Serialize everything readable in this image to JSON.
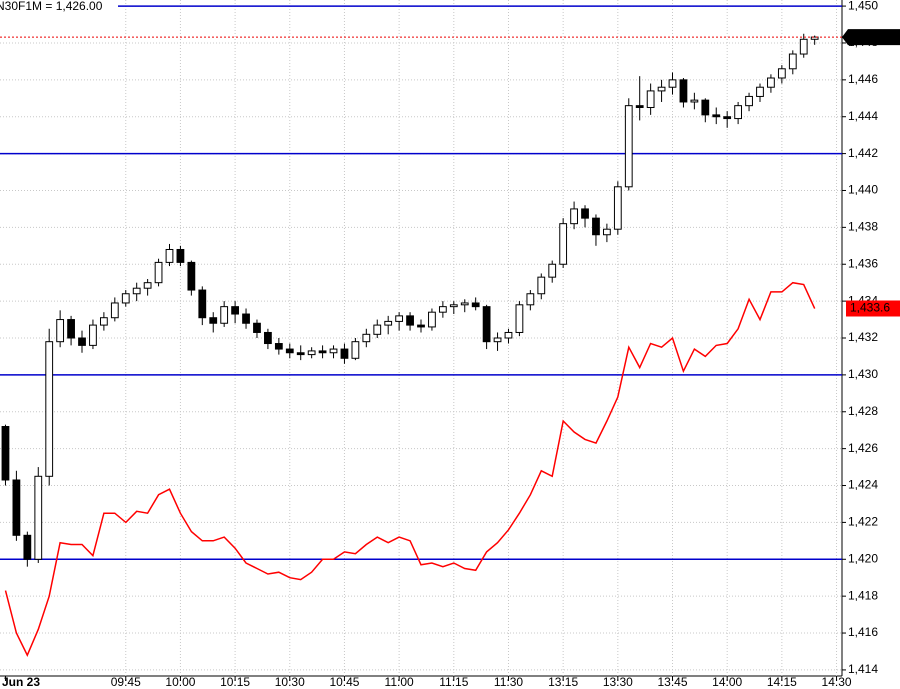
{
  "chart_data": {
    "type": "candlestick",
    "title": "N30F1M = 1,426.00",
    "categories": [
      "Jun 23",
      null,
      null,
      null,
      null,
      null,
      null,
      null,
      null,
      null,
      null,
      "09:45",
      null,
      null,
      null,
      null,
      "10:00",
      null,
      null,
      null,
      null,
      "10:15",
      null,
      null,
      null,
      null,
      "10:30",
      null,
      null,
      null,
      null,
      "10:45",
      null,
      null,
      null,
      null,
      "11:00",
      null,
      null,
      null,
      null,
      "11:15",
      null,
      null,
      null,
      null,
      "11:30",
      null,
      null,
      null,
      null,
      "13:15",
      null,
      null,
      null,
      null,
      "13:30",
      null,
      null,
      null,
      null,
      "13:45",
      null,
      null,
      null,
      null,
      "14:00",
      null,
      null,
      null,
      null,
      "14:15",
      null,
      null,
      null,
      null,
      "14:30"
    ],
    "ohlc": {
      "name": "Price",
      "open": [
        1427.2,
        1424.3,
        1421.3,
        1420,
        1424.5,
        1431.8,
        1433,
        1432,
        1431.6,
        1432.7,
        1433.1,
        1433.9,
        1434.4,
        1434.7,
        1435,
        1436.1,
        1436.8,
        1436.1,
        1434.6,
        1433.1,
        1432.8,
        1433.7,
        1433.3,
        1432.8,
        1432.3,
        1431.7,
        1431.4,
        1431.2,
        1431.1,
        1431.3,
        1431.2,
        1431.4,
        1430.9,
        1431.8,
        1432.2,
        1432.7,
        1432.9,
        1433.2,
        1432.7,
        1432.6,
        1433.4,
        1433.7,
        1433.8,
        1433.9,
        1433.7,
        1431.8,
        1432,
        1432.3,
        1433.8,
        1434.4,
        1435.3,
        1436,
        1438.2,
        1439,
        1438.5,
        1437.6,
        1437.9,
        1440.2,
        1444.6,
        1444.5,
        1445.4,
        1445.6,
        1446,
        1444.8,
        1444.9,
        1444.1,
        1444,
        1443.9,
        1444.6,
        1445.1,
        1445.6,
        1446.1,
        1446.6,
        1447.4,
        1448.2,
        null,
        null
      ],
      "high": [
        1427.3,
        1424.8,
        1421.5,
        1425,
        1432.5,
        1433.5,
        1433.2,
        1432.4,
        1433,
        1433.4,
        1434.2,
        1434.6,
        1435,
        1435.2,
        1436.3,
        1437.1,
        1437,
        1436.2,
        1434.8,
        1433.4,
        1434,
        1434,
        1433.6,
        1433,
        1432.5,
        1432,
        1431.7,
        1431.6,
        1431.5,
        1431.6,
        1431.6,
        1431.7,
        1432,
        1432.5,
        1433,
        1433.2,
        1433.4,
        1433.4,
        1433,
        1433.6,
        1434,
        1434,
        1434.1,
        1434.2,
        1433.8,
        1432.3,
        1432.5,
        1434,
        1434.6,
        1435.5,
        1436.2,
        1438.5,
        1439.4,
        1439.2,
        1438.7,
        1438.2,
        1440.5,
        1445,
        1446.2,
        1445.8,
        1446,
        1446.4,
        1446.1,
        1445.3,
        1445,
        1444.5,
        1444.3,
        1444.8,
        1445.3,
        1445.8,
        1446.3,
        1446.8,
        1447.6,
        1448.5,
        1448.4,
        null,
        null
      ],
      "low": [
        1424,
        1421,
        1419.6,
        1419.8,
        1424,
        1431.5,
        1431.6,
        1431.2,
        1431.4,
        1432.4,
        1432.9,
        1433.7,
        1434,
        1434.3,
        1434.8,
        1435.9,
        1435.9,
        1434.3,
        1432.7,
        1432.3,
        1432.6,
        1432.8,
        1432.5,
        1432,
        1431.4,
        1431.1,
        1430.9,
        1430.8,
        1430.9,
        1430.9,
        1430.9,
        1430.6,
        1430.8,
        1431.5,
        1432,
        1432.2,
        1432.4,
        1432.4,
        1432.3,
        1432.4,
        1433.1,
        1433.3,
        1433.4,
        1433.5,
        1431.4,
        1431.3,
        1431.7,
        1432.1,
        1433.5,
        1434.1,
        1435,
        1435.8,
        1437.9,
        1438,
        1437,
        1437.2,
        1437.6,
        1440,
        1443.8,
        1444.1,
        1444.8,
        1445.2,
        1444.5,
        1444.4,
        1443.7,
        1443.6,
        1443.4,
        1443.6,
        1444.3,
        1444.8,
        1445.3,
        1445.8,
        1446.3,
        1447.2,
        1447.9,
        null,
        null
      ],
      "close": [
        1424.3,
        1421.3,
        1420,
        1424.5,
        1431.8,
        1433,
        1432,
        1431.6,
        1432.7,
        1433.1,
        1433.9,
        1434.4,
        1434.7,
        1435,
        1436.1,
        1436.8,
        1436.1,
        1434.6,
        1433.1,
        1432.8,
        1433.7,
        1433.3,
        1432.8,
        1432.3,
        1431.7,
        1431.4,
        1431.2,
        1431.1,
        1431.3,
        1431.2,
        1431.4,
        1430.9,
        1431.8,
        1432.2,
        1432.7,
        1432.9,
        1433.2,
        1432.7,
        1432.6,
        1433.4,
        1433.7,
        1433.8,
        1433.9,
        1433.7,
        1431.8,
        1432,
        1432.3,
        1433.8,
        1434.4,
        1435.3,
        1436,
        1438.2,
        1439,
        1438.5,
        1437.6,
        1437.9,
        1440.2,
        1444.6,
        1444.5,
        1445.4,
        1445.6,
        1446,
        1444.8,
        1444.9,
        1444.1,
        1444,
        1443.9,
        1444.6,
        1445.1,
        1445.6,
        1446.1,
        1446.6,
        1447.4,
        1448.2,
        1448.32,
        null,
        null
      ],
      "up_color": "#ffffff",
      "down_color": "#000000",
      "last": {
        "value": 1448.32,
        "label": "1,448.32"
      }
    },
    "series": [
      {
        "name": "N30F1M",
        "color": "#ff0000",
        "values": [
          1418.3,
          1416,
          1414.8,
          1416.2,
          1418,
          1420.9,
          1420.8,
          1420.8,
          1420.2,
          1422.5,
          1422.5,
          1422,
          1422.6,
          1422.5,
          1423.5,
          1423.8,
          1422.5,
          1421.5,
          1421,
          1421,
          1421.2,
          1420.6,
          1419.8,
          1419.5,
          1419.2,
          1419.3,
          1419,
          1418.9,
          1419.3,
          1420,
          1420,
          1420.4,
          1420.3,
          1420.8,
          1421.2,
          1420.9,
          1421.2,
          1421,
          1419.7,
          1419.8,
          1419.6,
          1419.8,
          1419.5,
          1419.4,
          1420.4,
          1420.9,
          1421.6,
          1422.5,
          1423.5,
          1424.8,
          1424.5,
          1427.5,
          1426.9,
          1426.5,
          1426.3,
          1427.5,
          1428.8,
          1431.5,
          1430.4,
          1431.7,
          1431.5,
          1432,
          1430.2,
          1431.4,
          1431,
          1431.6,
          1431.7,
          1432.5,
          1434.1,
          1433,
          1434.5,
          1434.5,
          1435,
          1434.9,
          1433.6,
          null,
          null
        ],
        "last": {
          "value": 1433.6,
          "label": "1,433.6"
        }
      }
    ],
    "hlines": [
      1450,
      1442,
      1430,
      1420
    ],
    "hline_color": "#0000cc",
    "ylim": [
      1413.67,
      1450.33
    ],
    "yticks": [
      {
        "value": 1414,
        "label": "1,414"
      },
      {
        "value": 1416,
        "label": "1,416"
      },
      {
        "value": 1418,
        "label": "1,418"
      },
      {
        "value": 1420,
        "label": "1,420"
      },
      {
        "value": 1422,
        "label": "1,422"
      },
      {
        "value": 1424,
        "label": "1,424"
      },
      {
        "value": 1426,
        "label": "1,426"
      },
      {
        "value": 1428,
        "label": "1,428"
      },
      {
        "value": 1430,
        "label": "1,430"
      },
      {
        "value": 1432,
        "label": "1,432"
      },
      {
        "value": 1434,
        "label": "1,434"
      },
      {
        "value": 1436,
        "label": "1,436"
      },
      {
        "value": 1438,
        "label": "1,438"
      },
      {
        "value": 1440,
        "label": "1,440"
      },
      {
        "value": 1442,
        "label": "1,442"
      },
      {
        "value": 1444,
        "label": "1,444"
      },
      {
        "value": 1446,
        "label": "1,446"
      },
      {
        "value": 1448,
        "label": "1,448"
      },
      {
        "value": 1450,
        "label": "1,450"
      }
    ],
    "grid": true
  }
}
